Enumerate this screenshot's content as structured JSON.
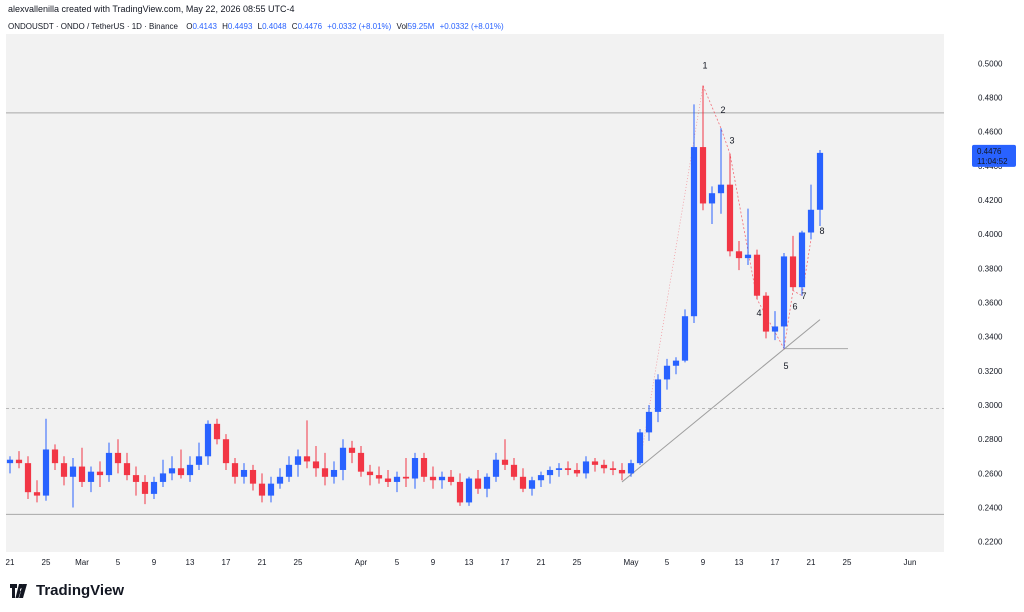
{
  "header": {
    "credit": "alexvallenilla created with TradingView.com, May 22, 2026 08:55 UTC-4"
  },
  "symbol_bar": {
    "symbol": "ONDOUSDT · ONDO / TetherUS · 1D · Binance",
    "o_label": "O",
    "o_value": "0.4143",
    "h_label": "H",
    "h_value": "0.4493",
    "l_label": "L",
    "l_value": "0.4048",
    "c_label": "C",
    "c_value": "0.4476",
    "change": "+0.0332 (+8.01%)",
    "vol_label": "Vol",
    "vol_value": "59.25M",
    "vol_change": "+0.0332 (+8.01%)"
  },
  "price_tag": {
    "price": "0.4476",
    "countdown": "11:04:52"
  },
  "footer": {
    "logo_text": "TradingView"
  },
  "colors": {
    "up": "#2962ff",
    "down": "#f23645",
    "background": "#f2f2f2",
    "price_tag": "#2962ff"
  },
  "chart_data": {
    "type": "candlestick",
    "title": "",
    "ylim": [
      0.2175,
      0.5125
    ],
    "y_ticks": [
      "0.5000",
      "0.4800",
      "0.4600",
      "0.4400",
      "0.4200",
      "0.4000",
      "0.3800",
      "0.3600",
      "0.3400",
      "0.3200",
      "0.3000",
      "0.2800",
      "0.2600",
      "0.2400",
      "0.2200"
    ],
    "x_start": "2026-02-21",
    "x_ticks": [
      {
        "date": "2026-02-21",
        "label": "21"
      },
      {
        "date": "2026-02-25",
        "label": "25"
      },
      {
        "date": "2026-03-01",
        "label": "Mar"
      },
      {
        "date": "2026-03-05",
        "label": "5"
      },
      {
        "date": "2026-03-09",
        "label": "9"
      },
      {
        "date": "2026-03-13",
        "label": "13"
      },
      {
        "date": "2026-03-17",
        "label": "17"
      },
      {
        "date": "2026-03-21",
        "label": "21"
      },
      {
        "date": "2026-03-25",
        "label": "25"
      },
      {
        "date": "2026-04-01",
        "label": "Apr"
      },
      {
        "date": "2026-04-05",
        "label": "5"
      },
      {
        "date": "2026-04-09",
        "label": "9"
      },
      {
        "date": "2026-04-13",
        "label": "13"
      },
      {
        "date": "2026-04-17",
        "label": "17"
      },
      {
        "date": "2026-04-21",
        "label": "21"
      },
      {
        "date": "2026-04-25",
        "label": "25"
      },
      {
        "date": "2026-05-01",
        "label": "May"
      },
      {
        "date": "2026-05-05",
        "label": "5"
      },
      {
        "date": "2026-05-09",
        "label": "9"
      },
      {
        "date": "2026-05-13",
        "label": "13"
      },
      {
        "date": "2026-05-17",
        "label": "17"
      },
      {
        "date": "2026-05-21",
        "label": "21"
      },
      {
        "date": "2026-05-25",
        "label": "25"
      },
      {
        "date": "2026-06-01",
        "label": "Jun"
      }
    ],
    "candles": [
      {
        "date": "2026-02-21",
        "o": 0.266,
        "h": 0.27,
        "l": 0.26,
        "c": 0.268
      },
      {
        "date": "2026-02-22",
        "o": 0.268,
        "h": 0.273,
        "l": 0.263,
        "c": 0.266
      },
      {
        "date": "2026-02-23",
        "o": 0.266,
        "h": 0.27,
        "l": 0.245,
        "c": 0.249
      },
      {
        "date": "2026-02-24",
        "o": 0.249,
        "h": 0.256,
        "l": 0.243,
        "c": 0.247
      },
      {
        "date": "2026-02-25",
        "o": 0.247,
        "h": 0.292,
        "l": 0.244,
        "c": 0.274
      },
      {
        "date": "2026-02-26",
        "o": 0.274,
        "h": 0.277,
        "l": 0.262,
        "c": 0.266
      },
      {
        "date": "2026-02-27",
        "o": 0.266,
        "h": 0.27,
        "l": 0.253,
        "c": 0.258
      },
      {
        "date": "2026-02-28",
        "o": 0.258,
        "h": 0.269,
        "l": 0.24,
        "c": 0.264
      },
      {
        "date": "2026-03-01",
        "o": 0.264,
        "h": 0.275,
        "l": 0.252,
        "c": 0.255
      },
      {
        "date": "2026-03-02",
        "o": 0.255,
        "h": 0.264,
        "l": 0.249,
        "c": 0.261
      },
      {
        "date": "2026-03-03",
        "o": 0.261,
        "h": 0.267,
        "l": 0.252,
        "c": 0.259
      },
      {
        "date": "2026-03-04",
        "o": 0.259,
        "h": 0.278,
        "l": 0.255,
        "c": 0.272
      },
      {
        "date": "2026-03-05",
        "o": 0.272,
        "h": 0.28,
        "l": 0.26,
        "c": 0.266
      },
      {
        "date": "2026-03-06",
        "o": 0.266,
        "h": 0.272,
        "l": 0.256,
        "c": 0.259
      },
      {
        "date": "2026-03-07",
        "o": 0.259,
        "h": 0.264,
        "l": 0.247,
        "c": 0.255
      },
      {
        "date": "2026-03-08",
        "o": 0.255,
        "h": 0.259,
        "l": 0.242,
        "c": 0.248
      },
      {
        "date": "2026-03-09",
        "o": 0.248,
        "h": 0.258,
        "l": 0.245,
        "c": 0.255
      },
      {
        "date": "2026-03-10",
        "o": 0.255,
        "h": 0.268,
        "l": 0.252,
        "c": 0.26
      },
      {
        "date": "2026-03-11",
        "o": 0.26,
        "h": 0.27,
        "l": 0.256,
        "c": 0.263
      },
      {
        "date": "2026-03-12",
        "o": 0.263,
        "h": 0.274,
        "l": 0.257,
        "c": 0.259
      },
      {
        "date": "2026-03-13",
        "o": 0.259,
        "h": 0.27,
        "l": 0.255,
        "c": 0.265
      },
      {
        "date": "2026-03-14",
        "o": 0.265,
        "h": 0.278,
        "l": 0.262,
        "c": 0.27
      },
      {
        "date": "2026-03-15",
        "o": 0.27,
        "h": 0.291,
        "l": 0.265,
        "c": 0.289
      },
      {
        "date": "2026-03-16",
        "o": 0.289,
        "h": 0.292,
        "l": 0.277,
        "c": 0.28
      },
      {
        "date": "2026-03-17",
        "o": 0.28,
        "h": 0.283,
        "l": 0.262,
        "c": 0.266
      },
      {
        "date": "2026-03-18",
        "o": 0.266,
        "h": 0.269,
        "l": 0.254,
        "c": 0.258
      },
      {
        "date": "2026-03-19",
        "o": 0.258,
        "h": 0.266,
        "l": 0.254,
        "c": 0.262
      },
      {
        "date": "2026-03-20",
        "o": 0.262,
        "h": 0.265,
        "l": 0.25,
        "c": 0.254
      },
      {
        "date": "2026-03-21",
        "o": 0.254,
        "h": 0.26,
        "l": 0.243,
        "c": 0.247
      },
      {
        "date": "2026-03-22",
        "o": 0.247,
        "h": 0.258,
        "l": 0.243,
        "c": 0.254
      },
      {
        "date": "2026-03-23",
        "o": 0.254,
        "h": 0.263,
        "l": 0.251,
        "c": 0.258
      },
      {
        "date": "2026-03-24",
        "o": 0.258,
        "h": 0.27,
        "l": 0.255,
        "c": 0.265
      },
      {
        "date": "2026-03-25",
        "o": 0.265,
        "h": 0.274,
        "l": 0.258,
        "c": 0.27
      },
      {
        "date": "2026-03-26",
        "o": 0.27,
        "h": 0.291,
        "l": 0.263,
        "c": 0.267
      },
      {
        "date": "2026-03-27",
        "o": 0.267,
        "h": 0.276,
        "l": 0.258,
        "c": 0.263
      },
      {
        "date": "2026-03-28",
        "o": 0.263,
        "h": 0.272,
        "l": 0.253,
        "c": 0.258
      },
      {
        "date": "2026-03-29",
        "o": 0.258,
        "h": 0.267,
        "l": 0.254,
        "c": 0.262
      },
      {
        "date": "2026-03-30",
        "o": 0.262,
        "h": 0.28,
        "l": 0.256,
        "c": 0.275
      },
      {
        "date": "2026-03-31",
        "o": 0.275,
        "h": 0.279,
        "l": 0.266,
        "c": 0.272
      },
      {
        "date": "2026-04-01",
        "o": 0.272,
        "h": 0.276,
        "l": 0.258,
        "c": 0.261
      },
      {
        "date": "2026-04-02",
        "o": 0.261,
        "h": 0.265,
        "l": 0.253,
        "c": 0.259
      },
      {
        "date": "2026-04-03",
        "o": 0.259,
        "h": 0.264,
        "l": 0.254,
        "c": 0.257
      },
      {
        "date": "2026-04-04",
        "o": 0.257,
        "h": 0.262,
        "l": 0.252,
        "c": 0.255
      },
      {
        "date": "2026-04-05",
        "o": 0.255,
        "h": 0.261,
        "l": 0.249,
        "c": 0.258
      },
      {
        "date": "2026-04-06",
        "o": 0.258,
        "h": 0.269,
        "l": 0.252,
        "c": 0.257
      },
      {
        "date": "2026-04-07",
        "o": 0.257,
        "h": 0.272,
        "l": 0.251,
        "c": 0.269
      },
      {
        "date": "2026-04-08",
        "o": 0.269,
        "h": 0.272,
        "l": 0.255,
        "c": 0.258
      },
      {
        "date": "2026-04-09",
        "o": 0.258,
        "h": 0.264,
        "l": 0.251,
        "c": 0.256
      },
      {
        "date": "2026-04-10",
        "o": 0.256,
        "h": 0.261,
        "l": 0.251,
        "c": 0.258
      },
      {
        "date": "2026-04-11",
        "o": 0.258,
        "h": 0.262,
        "l": 0.253,
        "c": 0.255
      },
      {
        "date": "2026-04-12",
        "o": 0.255,
        "h": 0.26,
        "l": 0.241,
        "c": 0.243
      },
      {
        "date": "2026-04-13",
        "o": 0.243,
        "h": 0.258,
        "l": 0.241,
        "c": 0.257
      },
      {
        "date": "2026-04-14",
        "o": 0.257,
        "h": 0.262,
        "l": 0.248,
        "c": 0.251
      },
      {
        "date": "2026-04-15",
        "o": 0.251,
        "h": 0.26,
        "l": 0.246,
        "c": 0.258
      },
      {
        "date": "2026-04-16",
        "o": 0.258,
        "h": 0.272,
        "l": 0.255,
        "c": 0.268
      },
      {
        "date": "2026-04-17",
        "o": 0.268,
        "h": 0.28,
        "l": 0.262,
        "c": 0.265
      },
      {
        "date": "2026-04-18",
        "o": 0.265,
        "h": 0.269,
        "l": 0.256,
        "c": 0.258
      },
      {
        "date": "2026-04-19",
        "o": 0.258,
        "h": 0.263,
        "l": 0.249,
        "c": 0.251
      },
      {
        "date": "2026-04-20",
        "o": 0.251,
        "h": 0.258,
        "l": 0.247,
        "c": 0.256
      },
      {
        "date": "2026-04-21",
        "o": 0.256,
        "h": 0.261,
        "l": 0.252,
        "c": 0.259
      },
      {
        "date": "2026-04-22",
        "o": 0.259,
        "h": 0.264,
        "l": 0.254,
        "c": 0.262
      },
      {
        "date": "2026-04-23",
        "o": 0.262,
        "h": 0.266,
        "l": 0.258,
        "c": 0.263
      },
      {
        "date": "2026-04-24",
        "o": 0.263,
        "h": 0.267,
        "l": 0.259,
        "c": 0.262
      },
      {
        "date": "2026-04-25",
        "o": 0.262,
        "h": 0.266,
        "l": 0.258,
        "c": 0.26
      },
      {
        "date": "2026-04-26",
        "o": 0.26,
        "h": 0.27,
        "l": 0.257,
        "c": 0.267
      },
      {
        "date": "2026-04-27",
        "o": 0.267,
        "h": 0.269,
        "l": 0.261,
        "c": 0.265
      },
      {
        "date": "2026-04-28",
        "o": 0.265,
        "h": 0.268,
        "l": 0.26,
        "c": 0.263
      },
      {
        "date": "2026-04-29",
        "o": 0.263,
        "h": 0.267,
        "l": 0.259,
        "c": 0.262
      },
      {
        "date": "2026-04-30",
        "o": 0.262,
        "h": 0.266,
        "l": 0.256,
        "c": 0.26
      },
      {
        "date": "2026-05-01",
        "o": 0.26,
        "h": 0.268,
        "l": 0.258,
        "c": 0.266
      },
      {
        "date": "2026-05-02",
        "o": 0.266,
        "h": 0.286,
        "l": 0.265,
        "c": 0.284
      },
      {
        "date": "2026-05-03",
        "o": 0.284,
        "h": 0.3,
        "l": 0.279,
        "c": 0.296
      },
      {
        "date": "2026-05-04",
        "o": 0.296,
        "h": 0.318,
        "l": 0.29,
        "c": 0.315
      },
      {
        "date": "2026-05-05",
        "o": 0.315,
        "h": 0.327,
        "l": 0.309,
        "c": 0.323
      },
      {
        "date": "2026-05-06",
        "o": 0.323,
        "h": 0.328,
        "l": 0.318,
        "c": 0.326
      },
      {
        "date": "2026-05-07",
        "o": 0.326,
        "h": 0.356,
        "l": 0.325,
        "c": 0.352
      },
      {
        "date": "2026-05-08",
        "o": 0.352,
        "h": 0.476,
        "l": 0.348,
        "c": 0.451
      },
      {
        "date": "2026-05-09",
        "o": 0.451,
        "h": 0.487,
        "l": 0.414,
        "c": 0.418
      },
      {
        "date": "2026-05-10",
        "o": 0.418,
        "h": 0.428,
        "l": 0.406,
        "c": 0.424
      },
      {
        "date": "2026-05-11",
        "o": 0.424,
        "h": 0.462,
        "l": 0.412,
        "c": 0.429
      },
      {
        "date": "2026-05-12",
        "o": 0.429,
        "h": 0.447,
        "l": 0.387,
        "c": 0.39
      },
      {
        "date": "2026-05-13",
        "o": 0.39,
        "h": 0.396,
        "l": 0.379,
        "c": 0.386
      },
      {
        "date": "2026-05-14",
        "o": 0.386,
        "h": 0.415,
        "l": 0.382,
        "c": 0.388
      },
      {
        "date": "2026-05-15",
        "o": 0.388,
        "h": 0.391,
        "l": 0.362,
        "c": 0.364
      },
      {
        "date": "2026-05-16",
        "o": 0.364,
        "h": 0.366,
        "l": 0.339,
        "c": 0.343
      },
      {
        "date": "2026-05-17",
        "o": 0.343,
        "h": 0.355,
        "l": 0.338,
        "c": 0.346
      },
      {
        "date": "2026-05-18",
        "o": 0.346,
        "h": 0.389,
        "l": 0.333,
        "c": 0.387
      },
      {
        "date": "2026-05-19",
        "o": 0.387,
        "h": 0.399,
        "l": 0.367,
        "c": 0.369
      },
      {
        "date": "2026-05-20",
        "o": 0.369,
        "h": 0.402,
        "l": 0.364,
        "c": 0.401
      },
      {
        "date": "2026-05-21",
        "o": 0.401,
        "h": 0.429,
        "l": 0.397,
        "c": 0.4143
      },
      {
        "date": "2026-05-22",
        "o": 0.4143,
        "h": 0.4493,
        "l": 0.4048,
        "c": 0.4476
      }
    ],
    "horizontal_lines": [
      {
        "value": 0.471,
        "style": "solid"
      },
      {
        "value": 0.298,
        "style": "dashed"
      },
      {
        "value": 0.236,
        "style": "solid"
      },
      {
        "value": 0.333,
        "style": "solid",
        "from": "2026-05-18"
      }
    ],
    "trendline": {
      "from": {
        "date": "2026-04-30",
        "value": 0.255
      },
      "to": {
        "date": "2026-05-22",
        "value": 0.35
      }
    },
    "wave_path": [
      {
        "date": "2026-05-09",
        "value": 0.487
      },
      {
        "date": "2026-05-11",
        "value": 0.462
      },
      {
        "date": "2026-05-12",
        "value": 0.447
      },
      {
        "date": "2026-05-15",
        "value": 0.362
      },
      {
        "date": "2026-05-18",
        "value": 0.333
      },
      {
        "date": "2026-05-19",
        "value": 0.367
      },
      {
        "date": "2026-05-20",
        "value": 0.364
      },
      {
        "date": "2026-05-21",
        "value": 0.397
      }
    ],
    "wave_labels": [
      {
        "label": "1",
        "date": "2026-05-09",
        "value": 0.497
      },
      {
        "label": "2",
        "date": "2026-05-11",
        "value": 0.471
      },
      {
        "label": "3",
        "date": "2026-05-12",
        "value": 0.453
      },
      {
        "label": "4",
        "date": "2026-05-15",
        "value": 0.352
      },
      {
        "label": "5",
        "date": "2026-05-18",
        "value": 0.321
      },
      {
        "label": "6",
        "date": "2026-05-19",
        "value": 0.356
      },
      {
        "label": "7",
        "date": "2026-05-20",
        "value": 0.362
      },
      {
        "label": "8",
        "date": "2026-05-22",
        "value": 0.4
      }
    ]
  }
}
